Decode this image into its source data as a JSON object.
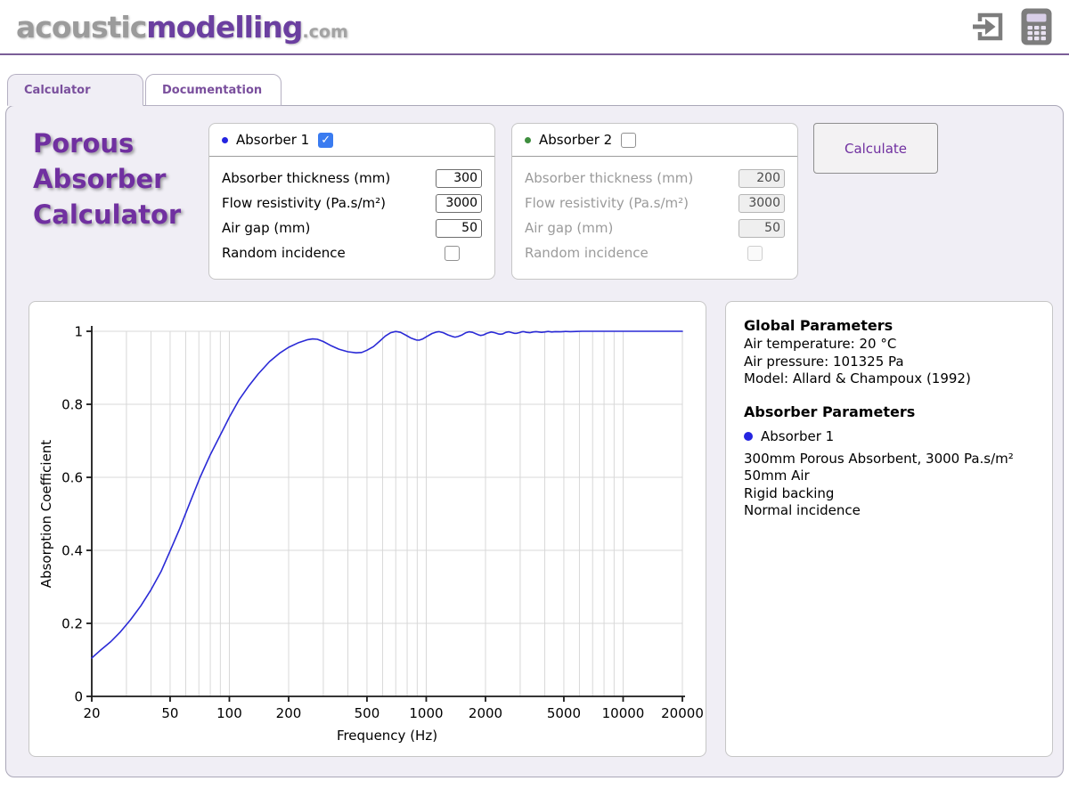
{
  "header": {
    "logo_part1": "acoustic",
    "logo_part2": "modelling",
    "logo_part3": ".com",
    "icons": [
      "login-icon",
      "calculator-icon"
    ]
  },
  "tabs": [
    {
      "label": "Calculator",
      "active": true
    },
    {
      "label": "Documentation",
      "active": false
    }
  ],
  "title": {
    "line1": "Porous",
    "line2": "Absorber",
    "line3": "Calculator"
  },
  "glyphs": {
    "check": "✓"
  },
  "colors": {
    "accent_purple": "#7030a0",
    "tab_purple": "#7a4f9d",
    "header_rule": "#7b5e98",
    "curve_blue": "#2a2ad6",
    "absorber1_bullet": "#2424e0",
    "absorber2_bullet": "#3e8e3e",
    "checkbox_blue": "#3a7bf0",
    "content_bg": "#f0eef5"
  },
  "absorber1": {
    "name": "Absorber 1",
    "enabled_checked": true,
    "fields": [
      {
        "label": "Absorber thickness (mm)",
        "value": "300"
      },
      {
        "label": "Flow resistivity (Pa.s/m²)",
        "value": "3000"
      },
      {
        "label": "Air gap (mm)",
        "value": "50"
      }
    ],
    "random_label": "Random incidence",
    "random_checked": false
  },
  "absorber2": {
    "name": "Absorber 2",
    "enabled_checked": false,
    "fields": [
      {
        "label": "Absorber thickness (mm)",
        "value": "200"
      },
      {
        "label": "Flow resistivity (Pa.s/m²)",
        "value": "3000"
      },
      {
        "label": "Air gap (mm)",
        "value": "50"
      }
    ],
    "random_label": "Random incidence",
    "random_checked": false
  },
  "calculate_label": "Calculate",
  "info_panel": {
    "global_heading": "Global Parameters",
    "global_lines": [
      "Air temperature: 20 °C",
      "Air pressure: 101325 Pa",
      "Model: Allard & Champoux (1992)"
    ],
    "absorber_heading": "Absorber Parameters",
    "absorber_name": "Absorber 1",
    "absorber_lines": [
      "300mm Porous Absorbent, 3000 Pa.s/m²",
      "50mm Air",
      "Rigid backing",
      "Normal incidence"
    ]
  },
  "chart_data": {
    "type": "line",
    "title": "",
    "xlabel": "Frequency (Hz)",
    "ylabel": "Absorption Coefficient",
    "x_scale": "log",
    "xlim": [
      20,
      20000
    ],
    "ylim": [
      0,
      1
    ],
    "x_ticks": [
      20,
      50,
      100,
      200,
      500,
      1000,
      2000,
      5000,
      10000,
      20000
    ],
    "y_ticks": [
      0,
      0.2,
      0.4,
      0.6,
      0.8,
      1
    ],
    "grid": true,
    "legend": "none",
    "line_color": "#2a2ad6",
    "series": [
      {
        "name": "Absorber 1",
        "points": [
          [
            20,
            0.105
          ],
          [
            22,
            0.125
          ],
          [
            25,
            0.15
          ],
          [
            28,
            0.177
          ],
          [
            31.5,
            0.21
          ],
          [
            35.5,
            0.248
          ],
          [
            40,
            0.292
          ],
          [
            45,
            0.342
          ],
          [
            50,
            0.398
          ],
          [
            56,
            0.46
          ],
          [
            63,
            0.53
          ],
          [
            71,
            0.6
          ],
          [
            80,
            0.662
          ],
          [
            90,
            0.716
          ],
          [
            100,
            0.765
          ],
          [
            112,
            0.812
          ],
          [
            125,
            0.849
          ],
          [
            140,
            0.883
          ],
          [
            160,
            0.917
          ],
          [
            180,
            0.94
          ],
          [
            200,
            0.956
          ],
          [
            225,
            0.969
          ],
          [
            250,
            0.977
          ],
          [
            265,
            0.979
          ],
          [
            280,
            0.978
          ],
          [
            300,
            0.972
          ],
          [
            330,
            0.96
          ],
          [
            360,
            0.951
          ],
          [
            400,
            0.944
          ],
          [
            440,
            0.941
          ],
          [
            470,
            0.942
          ],
          [
            500,
            0.948
          ],
          [
            540,
            0.958
          ],
          [
            580,
            0.973
          ],
          [
            620,
            0.987
          ],
          [
            660,
            0.996
          ],
          [
            700,
            0.9995
          ],
          [
            740,
            0.997
          ],
          [
            790,
            0.989
          ],
          [
            840,
            0.981
          ],
          [
            890,
            0.976
          ],
          [
            920,
            0.9755
          ],
          [
            960,
            0.979
          ],
          [
            1010,
            0.986
          ],
          [
            1070,
            0.994
          ],
          [
            1130,
            0.998
          ],
          [
            1160,
            0.999
          ],
          [
            1220,
            0.996
          ],
          [
            1290,
            0.99
          ],
          [
            1360,
            0.9855
          ],
          [
            1400,
            0.984
          ],
          [
            1450,
            0.9855
          ],
          [
            1520,
            0.99
          ],
          [
            1590,
            0.996
          ],
          [
            1650,
            0.9985
          ],
          [
            1720,
            0.997
          ],
          [
            1790,
            0.993
          ],
          [
            1850,
            0.99
          ],
          [
            1890,
            0.9885
          ],
          [
            1950,
            0.99
          ],
          [
            2040,
            0.995
          ],
          [
            2140,
            0.998
          ],
          [
            2230,
            0.996
          ],
          [
            2320,
            0.993
          ],
          [
            2380,
            0.992
          ],
          [
            2450,
            0.993
          ],
          [
            2540,
            0.997
          ],
          [
            2630,
            0.9985
          ],
          [
            2730,
            0.996
          ],
          [
            2810,
            0.9945
          ],
          [
            2870,
            0.9945
          ],
          [
            2960,
            0.996
          ],
          [
            3060,
            0.9985
          ],
          [
            3120,
            0.999
          ],
          [
            3230,
            0.997
          ],
          [
            3360,
            0.996
          ],
          [
            3480,
            0.998
          ],
          [
            3610,
            0.999
          ],
          [
            3730,
            0.998
          ],
          [
            3850,
            0.997
          ],
          [
            3990,
            0.998
          ],
          [
            4160,
            0.9995
          ],
          [
            4340,
            0.998
          ],
          [
            4520,
            0.999
          ],
          [
            4830,
            0.9985
          ],
          [
            5100,
            0.9995
          ],
          [
            5400,
            0.999
          ],
          [
            5800,
            0.9995
          ],
          [
            6200,
            1.0
          ],
          [
            7000,
            1.0
          ],
          [
            8000,
            1.0
          ],
          [
            10000,
            1.0
          ],
          [
            12500,
            1.0
          ],
          [
            16000,
            1.0
          ],
          [
            20000,
            1.0
          ]
        ]
      }
    ]
  }
}
